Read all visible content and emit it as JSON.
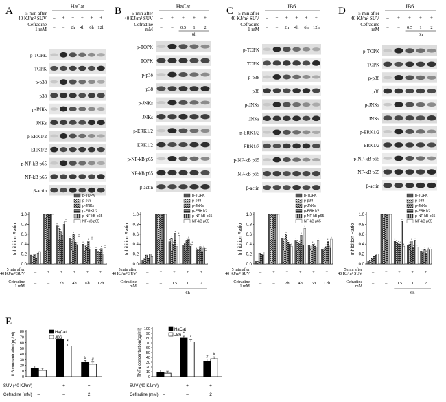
{
  "panels": [
    {
      "letter": "A",
      "cell_line": "HaCat",
      "cond1": "5 min after",
      "cond2": "40 KJ/m² SUV",
      "drug": "Cefradine",
      "dose": "1 mM",
      "dose_unit": "",
      "time_label": "",
      "signs": [
        "–",
        "+",
        "+",
        "+",
        "+",
        "+"
      ],
      "dose_marks": [
        "–",
        "–",
        "2h",
        "4h",
        "6h",
        "12h"
      ],
      "blots": [
        "p-TOPK",
        "TOPK",
        "p-p38",
        "p38",
        "p-JNKs",
        "JNKs",
        "p-ERK1/2",
        "ERK1/2",
        "p-NF-kB p65",
        "NF-kB p65",
        "β-actin"
      ]
    },
    {
      "letter": "B",
      "cell_line": "HaCat",
      "cond1": "5 min after",
      "cond2": "40 KJ/m² SUV",
      "drug": "Cefradine",
      "dose": "",
      "dose_unit": "mM",
      "time_label": "6h",
      "signs": [
        "–",
        "+",
        "+",
        "+",
        "+"
      ],
      "dose_marks": [
        "–",
        "–",
        "0.5",
        "1",
        "2"
      ],
      "blots": [
        "p-TOPK",
        "TOPK",
        "p-p38",
        "p38",
        "p-JNKs",
        "JNKs",
        "p-ERK1/2",
        "ERK1/2",
        "p-NF-kB p65",
        "NF-kB p65",
        "β-actin"
      ]
    },
    {
      "letter": "C",
      "cell_line": "JB6",
      "cond1": "5 min after",
      "cond2": "40 KJ/m² SUV",
      "drug": "Cefradine",
      "dose": "1 mM",
      "dose_unit": "",
      "time_label": "",
      "signs": [
        "–",
        "+",
        "+",
        "+",
        "+",
        "+"
      ],
      "dose_marks": [
        "–",
        "–",
        "2h",
        "4h",
        "6h",
        "12h"
      ],
      "blots": [
        "p-TOPK",
        "TOPK",
        "p-p38",
        "p38",
        "p-JNKs",
        "JNKs",
        "p-ERK1/2",
        "ERK1/2",
        "p-NF-kB p65",
        "NF-kB p65",
        "β-actin"
      ]
    },
    {
      "letter": "D",
      "cell_line": "JB6",
      "cond1": "5 min after",
      "cond2": "40 KJ/m² SUV",
      "drug": "Cefradine",
      "dose": "",
      "dose_unit": "mM",
      "time_label": "6h",
      "signs": [
        "–",
        "+",
        "+",
        "+",
        "+"
      ],
      "dose_marks": [
        "–",
        "–",
        "0.5",
        "1",
        "2"
      ],
      "blots": [
        "p-TOPK",
        "TOPK",
        "p-p38",
        "p38",
        "p-JNKs",
        "JNKs",
        "p-ERK1/2",
        "ERK1/2",
        "p-NF-kB p65",
        "NF-kB p65",
        "β-actin"
      ]
    }
  ],
  "bar_charts": [
    {
      "ylabel": "Inhibition Ratio",
      "yticks": [
        "0.0",
        "0.2",
        "0.4",
        "0.6",
        "0.8",
        "1.0"
      ],
      "cond1": "5 min after",
      "cond2": "40 KJ/m² SUV",
      "drug": "Cefradine",
      "drug_unit": "1 mM",
      "signs": [
        "–",
        "+",
        "+",
        "+",
        "+",
        "+"
      ],
      "marks": [
        "–",
        "–",
        "2h",
        "4h",
        "6h",
        "12h"
      ],
      "bracket_label": "",
      "legend": [
        "p-TOPK",
        "p-p38",
        "p-JNKs",
        "p-ERK1/2",
        "p-NF-kB p65",
        "NF-kB p65"
      ]
    },
    {
      "ylabel": "Inhibition Ratio",
      "yticks": [
        "0.0",
        "0.2",
        "0.4",
        "0.6",
        "0.8",
        "1.0"
      ],
      "cond1": "5 min after",
      "cond2": "40 KJ/m² SUV",
      "drug": "Cefradine",
      "drug_unit": "mM",
      "signs": [
        "–",
        "+",
        "+",
        "+",
        "+"
      ],
      "marks": [
        "–",
        "–",
        "0.5",
        "1",
        "2"
      ],
      "bracket_label": "6h",
      "legend": [
        "p-TOPK",
        "p-p38",
        "p-JNKs",
        "p-ERK1/2",
        "p-NF-kB p65",
        "NF-kB p65"
      ]
    },
    {
      "ylabel": "Inhibition Ratio",
      "yticks": [
        "0.0",
        "0.2",
        "0.4",
        "0.6",
        "0.8",
        "1.0"
      ],
      "cond1": "5 min after",
      "cond2": "40 KJ/m² SUV",
      "drug": "Cefradine",
      "drug_unit": "1 mM",
      "signs": [
        "–",
        "+",
        "+",
        "+",
        "+",
        "+"
      ],
      "marks": [
        "–",
        "–",
        "2h",
        "4h",
        "6h",
        "12h"
      ],
      "bracket_label": "",
      "legend": [
        "p-TOPK",
        "p-p38",
        "p-JNKs",
        "p-ERK1/2",
        "p-NF-kB p65",
        "NF-kB p65"
      ]
    },
    {
      "ylabel": "Inhibition Ratio",
      "yticks": [
        "0.0",
        "0.2",
        "0.4",
        "0.6",
        "0.8",
        "1.0"
      ],
      "cond1": "5 min after",
      "cond2": "40 KJ/m² SUV",
      "drug": "Cefradine",
      "drug_unit": "mM",
      "signs": [
        "–",
        "+",
        "+",
        "+",
        "+"
      ],
      "marks": [
        "–",
        "–",
        "0.5",
        "1",
        "2"
      ],
      "bracket_label": "6h",
      "legend": [
        "p-TOPK",
        "p-p38",
        "p-JNKs",
        "p-ERK1/2",
        "p-NF-kB p65",
        "NF-kB p65"
      ]
    }
  ],
  "panel_e": {
    "letter": "E",
    "row_label_suv": "SUV (40 KJ/m²)",
    "row_label_drug": "Cefradine (mM)",
    "suv_marks": [
      "–",
      "+",
      "+"
    ],
    "drug_marks": [
      "–",
      "–",
      "2"
    ],
    "charts": [
      {
        "ylabel": "IL6 concentration(pg/ml)",
        "yticks": [
          "0",
          "10",
          "20",
          "30",
          "40",
          "50",
          "60",
          "70",
          "80"
        ],
        "legend": [
          "HaCat",
          "JB6"
        ],
        "annotations": [
          "*",
          "*",
          "#",
          "#"
        ]
      },
      {
        "ylabel": "TNFα concentration(pg/ml)",
        "yticks": [
          "0",
          "10",
          "20",
          "30",
          "40",
          "50",
          "60",
          "70",
          "80",
          "90",
          "100"
        ],
        "legend": [
          "HaCat",
          "JB6"
        ],
        "annotations": [
          "*",
          "*",
          "#",
          "#"
        ]
      }
    ]
  },
  "chart_data": [
    {
      "type": "bar",
      "categories": [
        "–/–",
        "+/–",
        "+/2h",
        "+/4h",
        "+/6h",
        "+/12h"
      ],
      "ylim": [
        0,
        1.0
      ],
      "series": [
        {
          "name": "p-TOPK",
          "values": [
            0.18,
            1.0,
            0.77,
            0.52,
            0.4,
            0.29
          ]
        },
        {
          "name": "p-p38",
          "values": [
            0.15,
            1.0,
            0.72,
            0.45,
            0.38,
            0.26
          ]
        },
        {
          "name": "p-JNKs",
          "values": [
            0.2,
            1.0,
            0.66,
            0.6,
            0.33,
            0.24
          ]
        },
        {
          "name": "p-ERK1/2",
          "values": [
            0.12,
            1.0,
            0.58,
            0.44,
            0.46,
            0.31
          ]
        },
        {
          "name": "p-NF-kB p65",
          "values": [
            0.22,
            1.0,
            0.8,
            0.39,
            0.3,
            0.2
          ]
        },
        {
          "name": "NF-kB p65",
          "values": [
            0.25,
            1.0,
            0.86,
            0.55,
            0.5,
            0.33
          ]
        }
      ]
    },
    {
      "type": "bar",
      "categories": [
        "–/–",
        "+/–",
        "+/0.5",
        "+/1",
        "+/2"
      ],
      "ylim": [
        0,
        1.0
      ],
      "series": [
        {
          "name": "p-TOPK",
          "values": [
            0.08,
            1.0,
            0.45,
            0.38,
            0.28
          ]
        },
        {
          "name": "p-p38",
          "values": [
            0.1,
            1.0,
            0.52,
            0.42,
            0.3
          ]
        },
        {
          "name": "p-JNKs",
          "values": [
            0.18,
            1.0,
            0.4,
            0.48,
            0.35
          ]
        },
        {
          "name": "p-ERK1/2",
          "values": [
            0.12,
            1.0,
            0.62,
            0.5,
            0.25
          ]
        },
        {
          "name": "p-NF-kB p65",
          "values": [
            0.2,
            1.0,
            0.35,
            0.36,
            0.32
          ]
        },
        {
          "name": "NF-kB p65",
          "values": [
            0.15,
            1.0,
            0.58,
            0.4,
            0.27
          ]
        }
      ]
    },
    {
      "type": "bar",
      "categories": [
        "–/–",
        "+/–",
        "+/2h",
        "+/4h",
        "+/6h",
        "+/12h"
      ],
      "ylim": [
        0,
        1.0
      ],
      "series": [
        {
          "name": "p-TOPK",
          "values": [
            0.05,
            1.0,
            0.52,
            0.48,
            0.38,
            0.3
          ]
        },
        {
          "name": "p-p38",
          "values": [
            0.05,
            1.0,
            0.46,
            0.44,
            0.32,
            0.28
          ]
        },
        {
          "name": "p-JNKs",
          "values": [
            0.22,
            1.0,
            0.6,
            0.42,
            0.4,
            0.35
          ]
        },
        {
          "name": "p-ERK1/2",
          "values": [
            0.2,
            1.0,
            0.44,
            0.58,
            0.36,
            0.46
          ]
        },
        {
          "name": "p-NF-kB p65",
          "values": [
            0.18,
            1.0,
            0.4,
            0.38,
            0.34,
            0.32
          ]
        },
        {
          "name": "NF-kB p65",
          "values": [
            0.24,
            1.0,
            0.36,
            0.72,
            0.48,
            0.5
          ]
        }
      ]
    },
    {
      "type": "bar",
      "categories": [
        "–/–",
        "+/–",
        "+/0.5",
        "+/1",
        "+/2"
      ],
      "ylim": [
        0,
        1.0
      ],
      "series": [
        {
          "name": "p-TOPK",
          "values": [
            0.05,
            1.0,
            0.46,
            0.38,
            0.26
          ]
        },
        {
          "name": "p-p38",
          "values": [
            0.08,
            1.0,
            0.44,
            0.4,
            0.24
          ]
        },
        {
          "name": "p-JNKs",
          "values": [
            0.12,
            1.0,
            0.42,
            0.46,
            0.3
          ]
        },
        {
          "name": "p-ERK1/2",
          "values": [
            0.15,
            1.0,
            0.4,
            0.33,
            0.22
          ]
        },
        {
          "name": "p-NF-kB p65",
          "values": [
            0.18,
            1.0,
            0.86,
            0.48,
            0.28
          ]
        },
        {
          "name": "NF-kB p65",
          "values": [
            0.2,
            1.0,
            0.36,
            0.34,
            0.3
          ]
        }
      ]
    },
    {
      "type": "bar",
      "categories": [
        "–/–",
        "+/–",
        "+/2"
      ],
      "ylabel": "IL6 concentration(pg/ml)",
      "ylim": [
        0,
        80
      ],
      "series": [
        {
          "name": "HaCat",
          "values": [
            15,
            66,
            25
          ]
        },
        {
          "name": "JB6",
          "values": [
            11,
            54,
            22
          ]
        }
      ]
    },
    {
      "type": "bar",
      "categories": [
        "–/–",
        "+/–",
        "+/2"
      ],
      "ylabel": "TNFα concentration(pg/ml)",
      "ylim": [
        0,
        100
      ],
      "series": [
        {
          "name": "HaCat",
          "values": [
            9,
            80,
            32
          ]
        },
        {
          "name": "JB6",
          "values": [
            7,
            72,
            37
          ]
        }
      ]
    }
  ]
}
